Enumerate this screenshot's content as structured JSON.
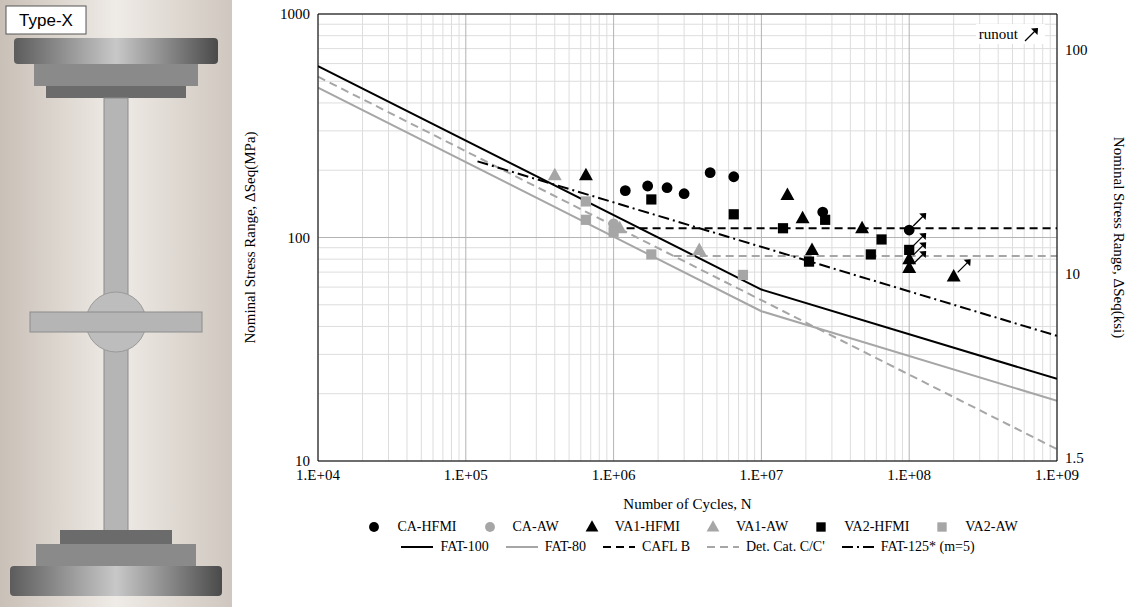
{
  "image": {
    "label": "Type-X"
  },
  "chart_data": {
    "type": "scatter",
    "x_label": "Number of Cycles, N",
    "y_label": "Nominal Stress Range, ΔSeq(MPa)",
    "y2_label": "Nominal Stress Range, ΔSeq(ksi)",
    "annotation": "runout",
    "log": true,
    "grid": true,
    "legend": "bottom",
    "xlim": [
      10000,
      1000000000
    ],
    "xticks": [
      {
        "value": 10000,
        "label": "1.E+04"
      },
      {
        "value": 100000,
        "label": "1.E+05"
      },
      {
        "value": 1000000,
        "label": "1.E+06"
      },
      {
        "value": 10000000,
        "label": "1.E+07"
      },
      {
        "value": 100000000,
        "label": "1.E+08"
      },
      {
        "value": 1000000000,
        "label": "1.E+09"
      }
    ],
    "ylim": [
      10,
      1000
    ],
    "yticks": [
      10,
      100,
      1000
    ],
    "y2lim": [
      1.45,
      145
    ],
    "y2ticks": [
      1.5,
      10,
      100
    ],
    "series": [
      {
        "name": "CA-HFMI",
        "type": "scatter",
        "marker": "circle",
        "color": "#000000",
        "x": [
          1200000,
          1700000,
          2300000,
          3000000,
          4500000,
          6500000,
          26000000,
          100000000
        ],
        "values": [
          162,
          170,
          167,
          157,
          195,
          187,
          130,
          108
        ],
        "runout": [
          false,
          false,
          false,
          false,
          false,
          false,
          false,
          true
        ]
      },
      {
        "name": "CA-AW",
        "type": "scatter",
        "marker": "circle",
        "color": "#a6a6a6",
        "x": [
          1000000
        ],
        "values": [
          115
        ],
        "runout": [
          false
        ]
      },
      {
        "name": "VA1-HFMI",
        "type": "scatter",
        "marker": "triangle",
        "color": "#000000",
        "x": [
          650000,
          15000000,
          19000000,
          22000000,
          48000000,
          100000000,
          100000000,
          200000000
        ],
        "values": [
          190,
          155,
          122,
          88,
          110,
          80,
          73,
          67
        ],
        "runout": [
          false,
          false,
          false,
          false,
          false,
          true,
          true,
          true
        ]
      },
      {
        "name": "VA1-AW",
        "type": "scatter",
        "marker": "triangle",
        "color": "#a6a6a6",
        "x": [
          400000,
          1100000,
          3800000
        ],
        "values": [
          190,
          110,
          88
        ],
        "runout": [
          false,
          false,
          false
        ]
      },
      {
        "name": "VA2-HFMI",
        "type": "scatter",
        "marker": "square",
        "color": "#000000",
        "x": [
          1800000,
          6500000,
          14000000,
          21000000,
          27000000,
          55000000,
          65000000,
          100000000
        ],
        "values": [
          148,
          127,
          110,
          78,
          120,
          84,
          98,
          88
        ],
        "runout": [
          false,
          false,
          false,
          false,
          false,
          false,
          false,
          true
        ]
      },
      {
        "name": "VA2-AW",
        "type": "scatter",
        "marker": "square",
        "color": "#a6a6a6",
        "x": [
          650000,
          650000,
          1000000,
          1800000,
          7500000
        ],
        "values": [
          145,
          120,
          106,
          84,
          68
        ],
        "runout": [
          false,
          false,
          false,
          false,
          false
        ]
      },
      {
        "name": "FAT-100",
        "type": "line",
        "line_style": "solid",
        "color": "#000000",
        "x": [
          10000,
          10000000,
          1000000000
        ],
        "values": [
          585,
          58.5,
          23.3
        ]
      },
      {
        "name": "FAT-80",
        "type": "line",
        "line_style": "solid",
        "color": "#a6a6a6",
        "x": [
          10000,
          10000000,
          1000000000
        ],
        "values": [
          468,
          46.8,
          18.6
        ]
      },
      {
        "name": "CAFL B",
        "type": "line",
        "line_style": "dashed",
        "color": "#000000",
        "x": [
          1000000,
          1000000000
        ],
        "values": [
          110,
          110
        ]
      },
      {
        "name": "Det. Cat. C/C'",
        "type": "line",
        "line_style": "dashed",
        "color": "#a6a6a6",
        "x": [
          10000,
          1000000000,
          null,
          2550000,
          1000000000
        ],
        "values": [
          524,
          11.3,
          null,
          82.7,
          82.7
        ]
      },
      {
        "name": "FAT-125* (m=5)",
        "type": "line",
        "line_style": "dashdot",
        "color": "#000000",
        "x": [
          120000,
          1000000000
        ],
        "values": [
          219,
          36.3
        ]
      }
    ]
  }
}
